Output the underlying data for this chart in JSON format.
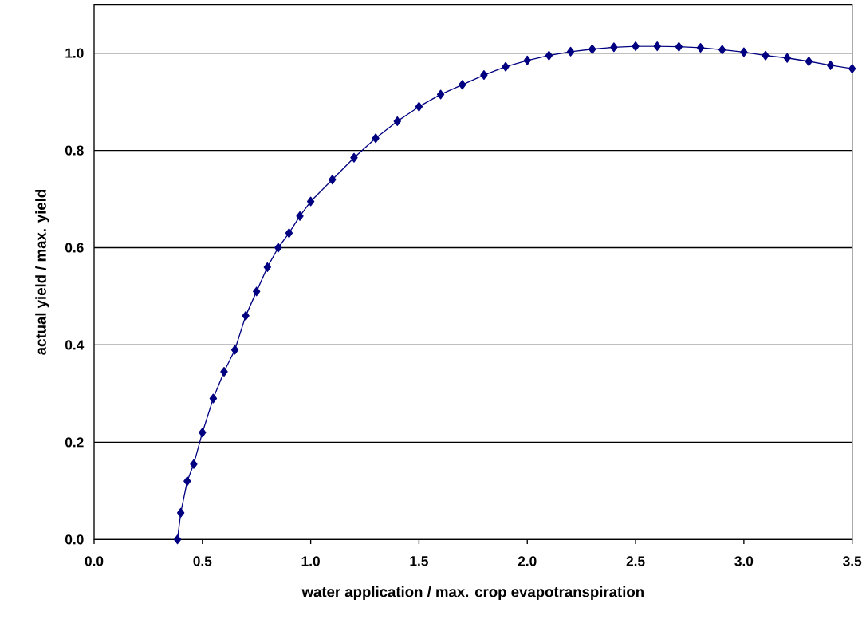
{
  "chart_data": {
    "type": "line",
    "xlabel": "water application / max. crop evapotranspiration",
    "ylabel": "actual yield / max. yield",
    "x": [
      0.385,
      0.4,
      0.43,
      0.46,
      0.5,
      0.55,
      0.6,
      0.65,
      0.7,
      0.75,
      0.8,
      0.85,
      0.9,
      0.95,
      1.0,
      1.1,
      1.2,
      1.3,
      1.4,
      1.5,
      1.6,
      1.7,
      1.8,
      1.9,
      2.0,
      2.1,
      2.2,
      2.3,
      2.4,
      2.5,
      2.6,
      2.7,
      2.8,
      2.9,
      3.0,
      3.1,
      3.2,
      3.3,
      3.4,
      3.5
    ],
    "series": [
      {
        "color": "#000080",
        "values": [
          0,
          0.055,
          0.12,
          0.155,
          0.22,
          0.29,
          0.345,
          0.39,
          0.46,
          0.51,
          0.56,
          0.6,
          0.63,
          0.665,
          0.695,
          0.74,
          0.785,
          0.825,
          0.86,
          0.89,
          0.915,
          0.935,
          0.955,
          0.972,
          0.985,
          0.995,
          1.003,
          1.008,
          1.012,
          1.014,
          1.014,
          1.013,
          1.011,
          1.007,
          1.002,
          0.995,
          0.99,
          0.983,
          0.975,
          0.968
        ]
      }
    ],
    "xlim": [
      0,
      3.5
    ],
    "ylim": [
      0,
      1.1
    ],
    "xticks": [
      {
        "value": 0,
        "label": "0.0"
      },
      0.5,
      {
        "value": 1,
        "label": "1.0"
      },
      1.5,
      {
        "value": 2,
        "label": "2.0"
      },
      2.5,
      {
        "value": 3,
        "label": "3.0"
      },
      3.5
    ],
    "yticks": [
      {
        "value": 0,
        "label": "0.0"
      },
      0.2,
      0.4,
      0.6,
      0.8,
      {
        "value": 1,
        "label": "1.0"
      }
    ],
    "grid": "y",
    "marker": "diamond",
    "line_style": "solid"
  }
}
